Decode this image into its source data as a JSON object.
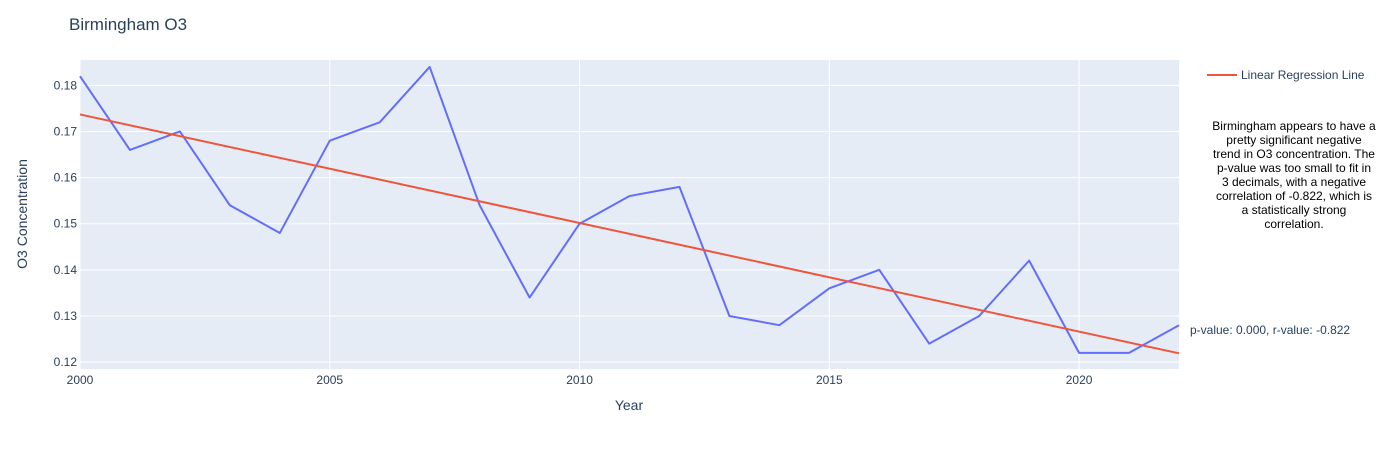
{
  "chart_data": {
    "type": "line",
    "title": "Birmingham O3",
    "xlabel": "Year",
    "ylabel": "O3 Concentration",
    "xlim": [
      2000,
      2022
    ],
    "ylim": [
      0.1185,
      0.1855
    ],
    "x_ticks": [
      2000,
      2005,
      2010,
      2015,
      2020
    ],
    "y_ticks": [
      0.12,
      0.13,
      0.14,
      0.15,
      0.16,
      0.17,
      0.18
    ],
    "grid": true,
    "legend_position": "top-right",
    "series": [
      {
        "name": "O3",
        "color": "#636efa",
        "show_in_legend": false,
        "x": [
          2000,
          2001,
          2002,
          2003,
          2004,
          2005,
          2006,
          2007,
          2008,
          2009,
          2010,
          2011,
          2012,
          2013,
          2014,
          2015,
          2016,
          2017,
          2018,
          2019,
          2020,
          2021,
          2022
        ],
        "values": [
          0.182,
          0.166,
          0.17,
          0.154,
          0.148,
          0.168,
          0.172,
          0.184,
          0.154,
          0.134,
          0.15,
          0.156,
          0.158,
          0.13,
          0.128,
          0.136,
          0.14,
          0.124,
          0.13,
          0.142,
          0.122,
          0.122,
          0.128
        ]
      },
      {
        "name": "Linear Regression Line",
        "color": "#ef553b",
        "show_in_legend": true,
        "x": [
          2000,
          2022
        ],
        "values": [
          0.1737,
          0.1219
        ]
      }
    ],
    "annotations": {
      "stats": "p-value: 0.000, r-value: -0.822",
      "note": "Birmingham appears to have a pretty significant negative trend in O3 concentration. The p-value was too small to fit in 3 decimals, with a negative correlation of -0.822, which is a statistically strong correlation."
    }
  }
}
